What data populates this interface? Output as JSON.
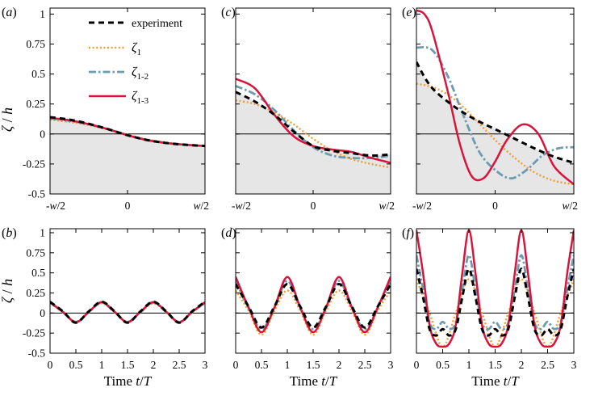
{
  "figure": {
    "ylabel_top": "ζ / h",
    "ylabel_bottom": "ζ / h",
    "xlabel_time": "Time t/T"
  },
  "legend": {
    "entries": [
      {
        "key": "experiment",
        "label": "experiment"
      },
      {
        "key": "z1",
        "label": "ζ",
        "sub": "1"
      },
      {
        "key": "z12",
        "label": "ζ",
        "sub": "1-2"
      },
      {
        "key": "z13",
        "label": "ζ",
        "sub": "1-3"
      }
    ]
  },
  "styles": {
    "experiment": {
      "color": "#000000",
      "dash": "7 5",
      "width": 3
    },
    "z1": {
      "color": "#f39c34",
      "dash": "2 2.6",
      "width": 2.4
    },
    "z12": {
      "color": "#6d9bb0",
      "dash": "9 3 2.5 3",
      "width": 2.8
    },
    "z13": {
      "color": "#d8143c",
      "dash": "",
      "width": 2.5
    },
    "fill": "#e6e6e6"
  },
  "chart_data": [
    {
      "id": "a",
      "panel_label": "(a)",
      "type": "line",
      "xlim": [
        -1,
        1
      ],
      "ylim": [
        -0.5,
        1.05
      ],
      "xticks": [
        -1,
        0,
        1
      ],
      "xtick_labels": [
        "-w/2",
        "0",
        "w/2"
      ],
      "yticks": [
        -0.5,
        -0.25,
        0,
        0.25,
        0.5,
        0.75,
        1
      ],
      "ytick_labels": [
        "-0.5",
        "-0.25",
        "0",
        "0.25",
        "0.5",
        "0.75",
        "1"
      ],
      "show_ylabels": true,
      "fill_series": "experiment",
      "series": [
        {
          "key": "experiment",
          "x": [
            -1,
            -0.75,
            -0.5,
            -0.25,
            0,
            0.25,
            0.5,
            0.75,
            1
          ],
          "y": [
            0.14,
            0.12,
            0.085,
            0.04,
            -0.01,
            -0.05,
            -0.075,
            -0.09,
            -0.1
          ]
        },
        {
          "key": "z1",
          "x": [
            -1,
            -0.75,
            -0.5,
            -0.25,
            0,
            0.25,
            0.5,
            0.75,
            1
          ],
          "y": [
            0.12,
            0.1,
            0.075,
            0.035,
            -0.005,
            -0.045,
            -0.07,
            -0.09,
            -0.1
          ]
        },
        {
          "key": "z12",
          "x": [
            -1,
            -0.75,
            -0.5,
            -0.25,
            0,
            0.25,
            0.5,
            0.75,
            1
          ],
          "y": [
            0.13,
            0.11,
            0.08,
            0.04,
            -0.01,
            -0.05,
            -0.075,
            -0.09,
            -0.1
          ]
        },
        {
          "key": "z13",
          "x": [
            -1,
            -0.75,
            -0.5,
            -0.25,
            0,
            0.25,
            0.5,
            0.75,
            1
          ],
          "y": [
            0.135,
            0.115,
            0.082,
            0.04,
            -0.01,
            -0.05,
            -0.075,
            -0.09,
            -0.1
          ]
        }
      ]
    },
    {
      "id": "c",
      "panel_label": "(c)",
      "type": "line",
      "xlim": [
        -1,
        1
      ],
      "ylim": [
        -0.5,
        1.05
      ],
      "xticks": [
        -1,
        0,
        1
      ],
      "xtick_labels": [
        "-w/2",
        "0",
        "w/2"
      ],
      "yticks": [
        -0.5,
        -0.25,
        0,
        0.25,
        0.5,
        0.75,
        1
      ],
      "ytick_labels": [
        "-0.5",
        "-0.25",
        "0",
        "0.25",
        "0.5",
        "0.75",
        "1"
      ],
      "show_ylabels": false,
      "fill_series": "experiment",
      "series": [
        {
          "key": "experiment",
          "x": [
            -1,
            -0.75,
            -0.5,
            -0.25,
            0,
            0.25,
            0.5,
            0.75,
            1
          ],
          "y": [
            0.35,
            0.27,
            0.16,
            0.02,
            -0.1,
            -0.14,
            -0.16,
            -0.18,
            -0.17
          ]
        },
        {
          "key": "z1",
          "x": [
            -1,
            -0.75,
            -0.5,
            -0.25,
            0,
            0.25,
            0.5,
            0.75,
            1
          ],
          "y": [
            0.28,
            0.25,
            0.18,
            0.08,
            -0.04,
            -0.14,
            -0.21,
            -0.25,
            -0.28
          ]
        },
        {
          "key": "z12",
          "x": [
            -1,
            -0.75,
            -0.5,
            -0.25,
            0,
            0.25,
            0.5,
            0.75,
            1
          ],
          "y": [
            0.4,
            0.33,
            0.2,
            0.03,
            -0.11,
            -0.18,
            -0.2,
            -0.2,
            -0.18
          ]
        },
        {
          "key": "z13",
          "x": [
            -1,
            -0.75,
            -0.5,
            -0.25,
            0,
            0.25,
            0.5,
            0.75,
            1
          ],
          "y": [
            0.46,
            0.38,
            0.16,
            -0.02,
            -0.1,
            -0.13,
            -0.15,
            -0.2,
            -0.24
          ]
        }
      ]
    },
    {
      "id": "e",
      "panel_label": "(e)",
      "type": "line",
      "xlim": [
        -1,
        1
      ],
      "ylim": [
        -0.5,
        1.05
      ],
      "xticks": [
        -1,
        0,
        1
      ],
      "xtick_labels": [
        "-w/2",
        "0",
        "w/2"
      ],
      "yticks": [
        -0.5,
        -0.25,
        0,
        0.25,
        0.5,
        0.75,
        1
      ],
      "ytick_labels": [
        "-0.5",
        "-0.25",
        "0",
        "0.25",
        "0.5",
        "0.75",
        "1"
      ],
      "show_ylabels": false,
      "fill_series": "experiment",
      "series": [
        {
          "key": "experiment",
          "x": [
            -1,
            -0.875,
            -0.75,
            -0.5,
            -0.25,
            0,
            0.25,
            0.5,
            0.75,
            1
          ],
          "y": [
            0.6,
            0.45,
            0.35,
            0.22,
            0.12,
            0.04,
            -0.04,
            -0.12,
            -0.19,
            -0.24
          ]
        },
        {
          "key": "z1",
          "x": [
            -1,
            -0.75,
            -0.5,
            -0.25,
            0,
            0.25,
            0.5,
            0.75,
            1
          ],
          "y": [
            0.42,
            0.38,
            0.28,
            0.12,
            -0.05,
            -0.2,
            -0.32,
            -0.39,
            -0.42
          ]
        },
        {
          "key": "z12",
          "x": [
            -1,
            -0.8,
            -0.6,
            -0.4,
            -0.2,
            0,
            0.2,
            0.4,
            0.6,
            0.8,
            1
          ],
          "y": [
            0.72,
            0.7,
            0.48,
            0.15,
            -0.15,
            -0.3,
            -0.37,
            -0.3,
            -0.18,
            -0.12,
            -0.11
          ]
        },
        {
          "key": "z13",
          "x": [
            -1,
            -0.9,
            -0.8,
            -0.6,
            -0.45,
            -0.3,
            -0.15,
            0,
            0.15,
            0.35,
            0.55,
            0.75,
            1
          ],
          "y": [
            1.03,
            1.0,
            0.86,
            0.35,
            -0.08,
            -0.35,
            -0.37,
            -0.23,
            -0.05,
            0.08,
            0.0,
            -0.27,
            -0.42
          ]
        }
      ]
    },
    {
      "id": "b",
      "panel_label": "(b)",
      "type": "line",
      "xlim": [
        0,
        3
      ],
      "ylim": [
        -0.5,
        1.05
      ],
      "xticks": [
        0,
        0.5,
        1,
        1.5,
        2,
        2.5,
        3
      ],
      "xtick_labels": [
        "0",
        "0.5",
        "1",
        "1.5",
        "2",
        "2.5",
        "3"
      ],
      "yticks": [
        -0.5,
        -0.25,
        0,
        0.25,
        0.5,
        0.75,
        1
      ],
      "ytick_labels": [
        "-0.5",
        "-0.25",
        "0",
        "0.25",
        "0.5",
        "0.75",
        "1"
      ],
      "show_ylabels": true,
      "fill_series": null,
      "xlabel": "Time t/T",
      "series": [
        {
          "key": "experiment",
          "x": [
            0,
            0.25,
            0.5,
            0.75,
            1,
            1.25,
            1.5,
            1.75,
            2,
            2.25,
            2.5,
            2.75,
            3
          ],
          "y": [
            0.14,
            0.02,
            -0.12,
            0.02,
            0.14,
            0.02,
            -0.12,
            0.02,
            0.14,
            0.02,
            -0.12,
            0.02,
            0.14
          ]
        },
        {
          "key": "z1",
          "x": [
            0,
            0.25,
            0.5,
            0.75,
            1,
            1.25,
            1.5,
            1.75,
            2,
            2.25,
            2.5,
            2.75,
            3
          ],
          "y": [
            0.12,
            0.01,
            -0.11,
            0.01,
            0.12,
            0.01,
            -0.11,
            0.01,
            0.12,
            0.01,
            -0.11,
            0.01,
            0.12
          ]
        },
        {
          "key": "z12",
          "x": [
            0,
            0.25,
            0.5,
            0.75,
            1,
            1.25,
            1.5,
            1.75,
            2,
            2.25,
            2.5,
            2.75,
            3
          ],
          "y": [
            0.13,
            0.01,
            -0.11,
            0.01,
            0.13,
            0.01,
            -0.11,
            0.01,
            0.13,
            0.01,
            -0.11,
            0.01,
            0.13
          ]
        },
        {
          "key": "z13",
          "x": [
            0,
            0.25,
            0.5,
            0.75,
            1,
            1.25,
            1.5,
            1.75,
            2,
            2.25,
            2.5,
            2.75,
            3
          ],
          "y": [
            0.135,
            0.015,
            -0.115,
            0.015,
            0.135,
            0.015,
            -0.115,
            0.015,
            0.135,
            0.015,
            -0.115,
            0.015,
            0.135
          ]
        }
      ]
    },
    {
      "id": "d",
      "panel_label": "(d)",
      "type": "line",
      "xlim": [
        0,
        3
      ],
      "ylim": [
        -0.5,
        1.05
      ],
      "xticks": [
        0,
        0.5,
        1,
        1.5,
        2,
        2.5,
        3
      ],
      "xtick_labels": [
        "0",
        "0.5",
        "1",
        "1.5",
        "2",
        "2.5",
        "3"
      ],
      "yticks": [
        -0.5,
        -0.25,
        0,
        0.25,
        0.5,
        0.75,
        1
      ],
      "ytick_labels": [
        "-0.5",
        "-0.25",
        "0",
        "0.25",
        "0.5",
        "0.75",
        "1"
      ],
      "show_ylabels": false,
      "fill_series": null,
      "xlabel": "Time t/T",
      "series": [
        {
          "key": "experiment",
          "x": [
            0,
            0.25,
            0.5,
            0.75,
            1,
            1.25,
            1.5,
            1.75,
            2,
            2.25,
            2.5,
            2.75,
            3
          ],
          "y": [
            0.36,
            0.08,
            -0.18,
            0.08,
            0.36,
            0.08,
            -0.18,
            0.08,
            0.36,
            0.08,
            -0.18,
            0.08,
            0.36
          ]
        },
        {
          "key": "z1",
          "x": [
            0,
            0.25,
            0.5,
            0.75,
            1,
            1.25,
            1.5,
            1.75,
            2,
            2.25,
            2.5,
            2.75,
            3
          ],
          "y": [
            0.28,
            0.03,
            -0.27,
            0.03,
            0.28,
            0.03,
            -0.27,
            0.03,
            0.28,
            0.03,
            -0.27,
            0.03,
            0.28
          ]
        },
        {
          "key": "z12",
          "x": [
            0,
            0.25,
            0.5,
            0.75,
            1,
            1.25,
            1.5,
            1.75,
            2,
            2.25,
            2.5,
            2.75,
            3
          ],
          "y": [
            0.4,
            0.06,
            -0.2,
            0.06,
            0.4,
            0.06,
            -0.2,
            0.06,
            0.4,
            0.06,
            -0.2,
            0.06,
            0.4
          ]
        },
        {
          "key": "z13",
          "x": [
            0,
            0.25,
            0.5,
            0.75,
            1,
            1.25,
            1.5,
            1.75,
            2,
            2.25,
            2.5,
            2.75,
            3
          ],
          "y": [
            0.45,
            0.07,
            -0.24,
            0.07,
            0.45,
            0.07,
            -0.24,
            0.07,
            0.45,
            0.07,
            -0.24,
            0.07,
            0.45
          ]
        }
      ]
    },
    {
      "id": "f",
      "panel_label": "(f)",
      "type": "line",
      "xlim": [
        0,
        3
      ],
      "ylim": [
        -0.5,
        1.05
      ],
      "xticks": [
        0,
        0.5,
        1,
        1.5,
        2,
        2.5,
        3
      ],
      "xtick_labels": [
        "0",
        "0.5",
        "1",
        "1.5",
        "2",
        "2.5",
        "3"
      ],
      "yticks": [
        -0.5,
        -0.25,
        0,
        0.25,
        0.5,
        0.75,
        1
      ],
      "ytick_labels": [
        "-0.5",
        "-0.25",
        "0",
        "0.25",
        "0.5",
        "0.75",
        "1"
      ],
      "show_ylabels": false,
      "fill_series": null,
      "xlabel": "Time t/T",
      "series": [
        {
          "key": "experiment",
          "x": [
            0,
            0.125,
            0.25,
            0.375,
            0.5,
            0.625,
            0.75,
            0.875,
            1,
            1.125,
            1.25,
            1.375,
            1.5,
            1.625,
            1.75,
            1.875,
            2,
            2.125,
            2.25,
            2.375,
            2.5,
            2.625,
            2.75,
            2.875,
            3
          ],
          "y": [
            0.55,
            0.2,
            -0.2,
            -0.28,
            -0.2,
            -0.28,
            -0.2,
            0.2,
            0.55,
            0.2,
            -0.2,
            -0.28,
            -0.2,
            -0.28,
            -0.2,
            0.2,
            0.55,
            0.2,
            -0.2,
            -0.28,
            -0.2,
            -0.28,
            -0.2,
            0.2,
            0.55
          ]
        },
        {
          "key": "z1",
          "x": [
            0,
            0.25,
            0.5,
            0.75,
            1,
            1.25,
            1.5,
            1.75,
            2,
            2.25,
            2.5,
            2.75,
            3
          ],
          "y": [
            0.42,
            0.0,
            -0.42,
            0.0,
            0.42,
            0.0,
            -0.42,
            0.0,
            0.42,
            0.0,
            -0.42,
            0.0,
            0.42
          ]
        },
        {
          "key": "z12",
          "x": [
            0,
            0.125,
            0.25,
            0.375,
            0.5,
            0.625,
            0.75,
            0.875,
            1,
            1.125,
            1.25,
            1.375,
            1.5,
            1.625,
            1.75,
            1.875,
            2,
            2.125,
            2.25,
            2.375,
            2.5,
            2.625,
            2.75,
            2.875,
            3
          ],
          "y": [
            0.72,
            0.3,
            -0.12,
            -0.2,
            -0.11,
            -0.2,
            -0.12,
            0.3,
            0.72,
            0.3,
            -0.12,
            -0.2,
            -0.11,
            -0.2,
            -0.12,
            0.3,
            0.72,
            0.3,
            -0.12,
            -0.2,
            -0.11,
            -0.2,
            -0.12,
            0.3,
            0.72
          ]
        },
        {
          "key": "z13",
          "x": [
            0,
            0.125,
            0.25,
            0.375,
            0.5,
            0.625,
            0.75,
            0.875,
            1,
            1.125,
            1.25,
            1.375,
            1.5,
            1.625,
            1.75,
            1.875,
            2,
            2.125,
            2.25,
            2.375,
            2.5,
            2.625,
            2.75,
            2.875,
            3
          ],
          "y": [
            1.03,
            0.5,
            -0.15,
            -0.38,
            -0.42,
            -0.38,
            -0.15,
            0.5,
            1.03,
            0.5,
            -0.15,
            -0.38,
            -0.42,
            -0.38,
            -0.15,
            0.5,
            1.03,
            0.5,
            -0.15,
            -0.38,
            -0.42,
            -0.38,
            -0.15,
            0.5,
            1.03
          ]
        }
      ]
    }
  ]
}
